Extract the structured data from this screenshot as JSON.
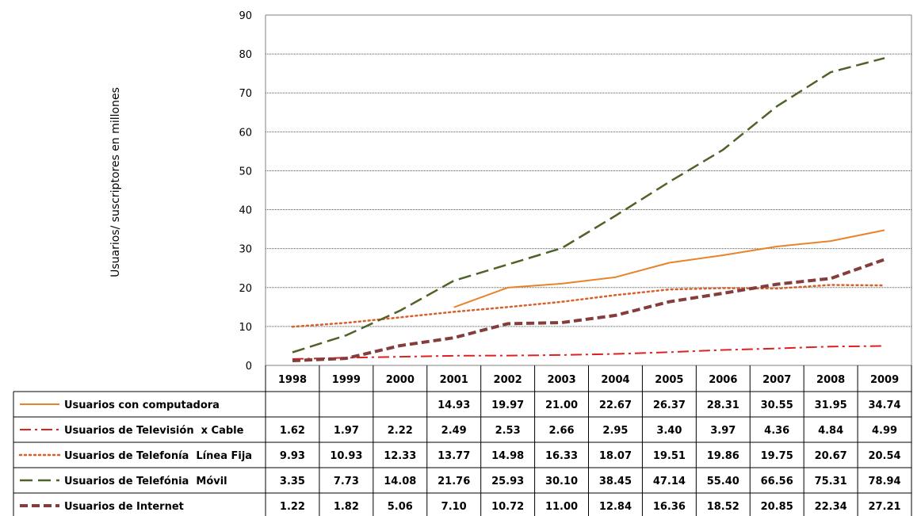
{
  "chart_data": {
    "type": "line",
    "title": "",
    "ylabel": "Usuarios/ suscriptores en millones",
    "xlabel": "",
    "ylim": [
      0,
      90
    ],
    "yticks": [
      0,
      10,
      20,
      30,
      40,
      50,
      60,
      70,
      80,
      90
    ],
    "grid": true,
    "legend": "data-table-below",
    "categories": [
      "1998",
      "1999",
      "2000",
      "2001",
      "2002",
      "2003",
      "2004",
      "2005",
      "2006",
      "2007",
      "2008",
      "2009"
    ],
    "series": [
      {
        "name": "Usuarios con computadora",
        "color": "#e8832a",
        "dash": "solid",
        "values": [
          null,
          null,
          null,
          14.93,
          19.97,
          21.0,
          22.67,
          26.37,
          28.31,
          30.55,
          31.95,
          34.74
        ],
        "labels": [
          "",
          "",
          "",
          "14.93",
          "19.97",
          "21.00",
          "22.67",
          "26.37",
          "28.31",
          "30.55",
          "31.95",
          "34.74"
        ]
      },
      {
        "name": "Usuarios de Televisión  x Cable",
        "color": "#e02020",
        "dash": "dashdot",
        "values": [
          1.62,
          1.97,
          2.22,
          2.49,
          2.53,
          2.66,
          2.95,
          3.4,
          3.97,
          4.36,
          4.84,
          4.99
        ],
        "labels": [
          "1.62",
          "1.97",
          "2.22",
          "2.49",
          "2.53",
          "2.66",
          "2.95",
          "3.40",
          "3.97",
          "4.36",
          "4.84",
          "4.99"
        ]
      },
      {
        "name": "Usuarios de Telefonía  Línea Fija",
        "color": "#d8602a",
        "dash": "dotted",
        "values": [
          9.93,
          10.93,
          12.33,
          13.77,
          14.98,
          16.33,
          18.07,
          19.51,
          19.86,
          19.75,
          20.67,
          20.54
        ],
        "labels": [
          "9.93",
          "10.93",
          "12.33",
          "13.77",
          "14.98",
          "16.33",
          "18.07",
          "19.51",
          "19.86",
          "19.75",
          "20.67",
          "20.54"
        ]
      },
      {
        "name": "Usuarios de Telefónia  Móvil",
        "color": "#4f6228",
        "dash": "longdash",
        "values": [
          3.35,
          7.73,
          14.08,
          21.76,
          25.93,
          30.1,
          38.45,
          47.14,
          55.4,
          66.56,
          75.31,
          78.94
        ],
        "labels": [
          "3.35",
          "7.73",
          "14.08",
          "21.76",
          "25.93",
          "30.10",
          "38.45",
          "47.14",
          "55.40",
          "66.56",
          "75.31",
          "78.94"
        ]
      },
      {
        "name": "Usuarios de Internet",
        "color": "#843c3c",
        "dash": "thickdash",
        "values": [
          1.22,
          1.82,
          5.06,
          7.1,
          10.72,
          11.0,
          12.84,
          16.36,
          18.52,
          20.85,
          22.34,
          27.21
        ],
        "labels": [
          "1.22",
          "1.82",
          "5.06",
          "7.10",
          "10.72",
          "11.00",
          "12.84",
          "16.36",
          "18.52",
          "20.85",
          "22.34",
          "27.21"
        ]
      }
    ]
  }
}
